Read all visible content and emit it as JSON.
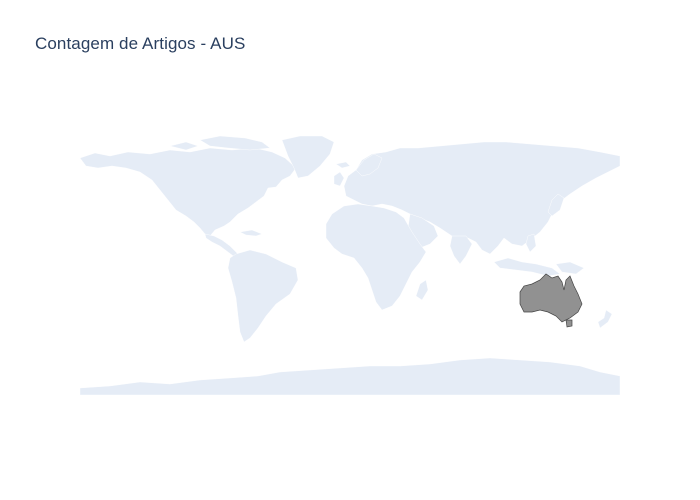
{
  "title": "Contagem de Artigos - AUS",
  "map": {
    "projection": "equirectangular",
    "land_color": "#e5ecf6",
    "background_color": "#ffffff",
    "highlighted_region": {
      "code": "AUS",
      "fill_color": "#919191",
      "border_color": "#444444"
    }
  }
}
